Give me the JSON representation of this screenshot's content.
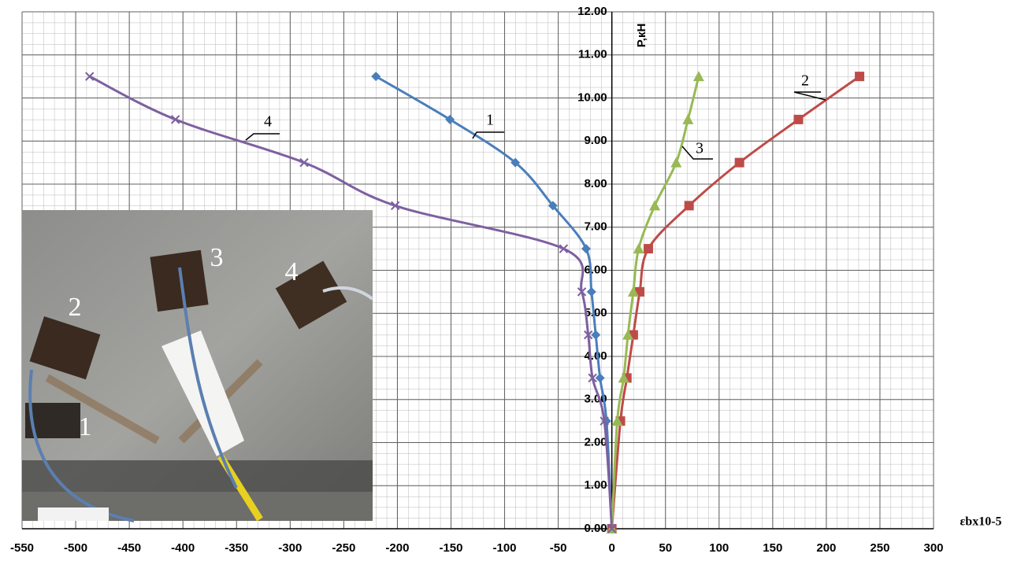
{
  "chart_data": {
    "type": "line",
    "x_label": "εbx10-5",
    "y_label": "P,кН",
    "xlim": [
      -550,
      300
    ],
    "ylim": [
      0,
      12
    ],
    "xticks": [
      -550,
      -500,
      -450,
      -400,
      -350,
      -300,
      -250,
      -200,
      -150,
      -100,
      -50,
      0,
      50,
      100,
      150,
      200,
      250,
      300
    ],
    "yticks": [
      {
        "value": 0,
        "label": "0.00"
      },
      {
        "value": 1,
        "label": "1.00"
      },
      {
        "value": 2,
        "label": "2.00"
      },
      {
        "value": 3,
        "label": "3.00"
      },
      {
        "value": 4,
        "label": "4.00"
      },
      {
        "value": 5,
        "label": "5.00"
      },
      {
        "value": 6,
        "label": "6.00"
      },
      {
        "value": 7,
        "label": "7.00"
      },
      {
        "value": 8,
        "label": "8.00"
      },
      {
        "value": 9,
        "label": "9.00"
      },
      {
        "value": 10,
        "label": "10.00"
      },
      {
        "value": 11,
        "label": "11.00"
      },
      {
        "value": 12,
        "label": "12.00"
      }
    ],
    "grid": true,
    "series": [
      {
        "color": "#4a7ebb",
        "marker": "diamond",
        "x": [
          0,
          -5,
          -11,
          -15,
          -19,
          -24,
          -55,
          -90,
          -151,
          -220
        ],
        "values": [
          0,
          2.5,
          3.5,
          4.5,
          5.5,
          6.5,
          7.5,
          8.5,
          9.5,
          10.5
        ]
      },
      {
        "color": "#be4b48",
        "marker": "square",
        "x": [
          0,
          8,
          14,
          20,
          26,
          34,
          72,
          119,
          174,
          231
        ],
        "values": [
          0,
          2.5,
          3.5,
          4.5,
          5.5,
          6.5,
          7.5,
          8.5,
          9.5,
          10.5
        ]
      },
      {
        "color": "#98b954",
        "marker": "triangle",
        "x": [
          0,
          5,
          11,
          15,
          20,
          25,
          40,
          60,
          71,
          81
        ],
        "values": [
          0,
          2.5,
          3.5,
          4.5,
          5.5,
          6.5,
          7.5,
          8.5,
          9.5,
          10.5
        ]
      },
      {
        "color": "#7d60a0",
        "marker": "x",
        "x": [
          0,
          -7,
          -18,
          -22,
          -28,
          -45,
          -202,
          -287,
          -407,
          -487
        ],
        "values": [
          0,
          2.5,
          3.5,
          4.5,
          5.5,
          6.5,
          7.5,
          8.5,
          9.5,
          10.5
        ]
      }
    ],
    "annotations": [
      "1",
      "2",
      "3",
      "4"
    ]
  },
  "inset": {
    "labels": [
      "1",
      "2",
      "3",
      "4"
    ]
  }
}
